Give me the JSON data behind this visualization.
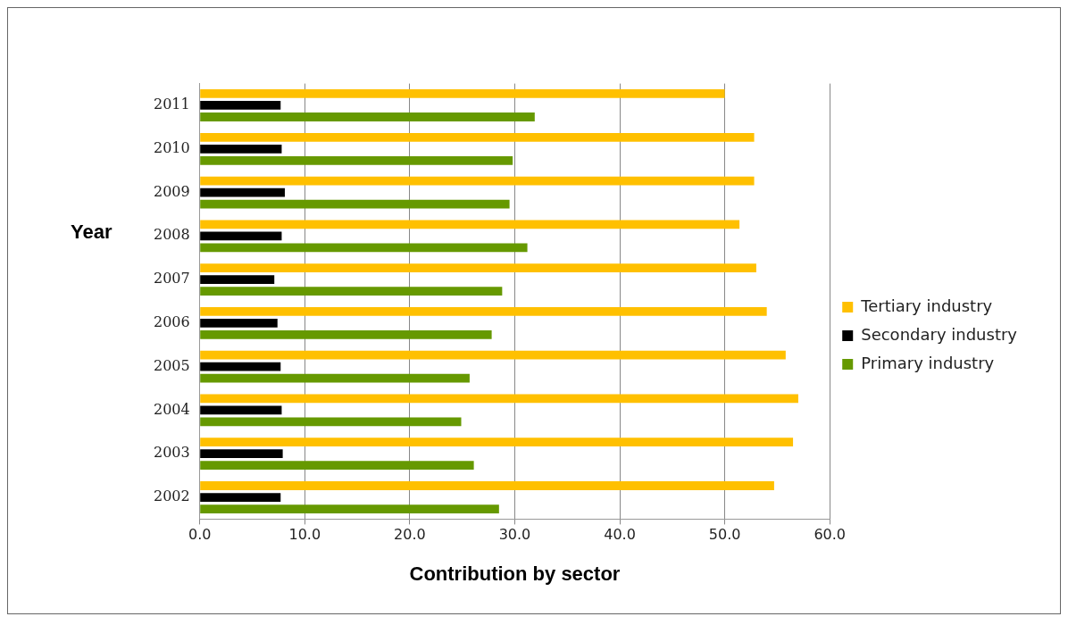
{
  "chart_data": {
    "type": "bar",
    "orientation": "horizontal",
    "xlabel": "Contribution by sector",
    "ylabel": "Year",
    "categories": [
      "2011",
      "2010",
      "2009",
      "2008",
      "2007",
      "2006",
      "2005",
      "2004",
      "2003",
      "2002"
    ],
    "series": [
      {
        "name": "Tertiary industry",
        "color": "#ffc000",
        "values": [
          50.0,
          52.8,
          52.8,
          51.4,
          53.0,
          54.0,
          55.8,
          57.0,
          56.5,
          54.7
        ]
      },
      {
        "name": "Secondary industry",
        "color": "#000000",
        "values": [
          7.7,
          7.8,
          8.1,
          7.8,
          7.1,
          7.4,
          7.7,
          7.8,
          7.9,
          7.7
        ]
      },
      {
        "name": "Primary industry",
        "color": "#669900",
        "values": [
          31.9,
          29.8,
          29.5,
          31.2,
          28.8,
          27.8,
          25.7,
          24.9,
          26.1,
          28.5
        ]
      }
    ],
    "xlim": [
      0,
      60
    ],
    "xticks": [
      {
        "value": 0,
        "label": "0.0"
      },
      {
        "value": 10,
        "label": "10.0"
      },
      {
        "value": 20,
        "label": "20.0"
      },
      {
        "value": 30,
        "label": "30.0"
      },
      {
        "value": 40,
        "label": "40.0"
      },
      {
        "value": 50,
        "label": "50.0"
      },
      {
        "value": 60,
        "label": "60.0"
      }
    ],
    "grid": "x",
    "legend": "right"
  }
}
